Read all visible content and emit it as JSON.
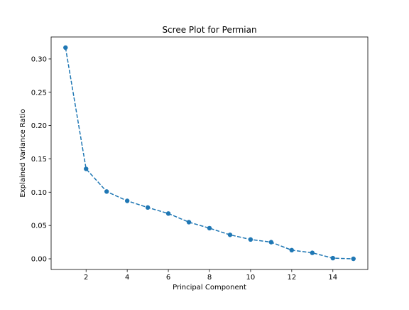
{
  "chart_data": {
    "type": "line",
    "title": "Scree Plot for Permian",
    "xlabel": "Principal Component",
    "ylabel": "Explained Variance Ratio",
    "xlim": [
      0.3,
      15.7
    ],
    "ylim": [
      -0.016,
      0.333
    ],
    "x_ticks": [
      2,
      4,
      6,
      8,
      10,
      12,
      14
    ],
    "x_tick_labels": [
      "2",
      "4",
      "6",
      "8",
      "10",
      "12",
      "14"
    ],
    "y_ticks": [
      0.0,
      0.05,
      0.1,
      0.15,
      0.2,
      0.25,
      0.3
    ],
    "y_tick_labels": [
      "0.00",
      "0.05",
      "0.10",
      "0.15",
      "0.20",
      "0.25",
      "0.30"
    ],
    "grid": false,
    "series": [
      {
        "x": [
          1,
          2,
          3,
          4,
          5,
          6,
          7,
          8,
          9,
          10,
          11,
          12,
          13,
          14,
          15
        ],
        "values": [
          0.317,
          0.135,
          0.101,
          0.087,
          0.077,
          0.068,
          0.055,
          0.046,
          0.036,
          0.029,
          0.025,
          0.013,
          0.009,
          0.001,
          0.0
        ],
        "color": "#1f77b4",
        "line_style": "dashed",
        "marker": "circle"
      }
    ]
  }
}
